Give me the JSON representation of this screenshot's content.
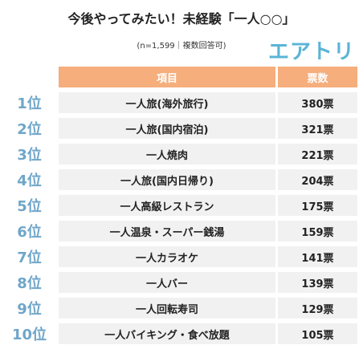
{
  "title": "今後やってみたい！未経験「一人○○」",
  "subtitle": "(n=1,599｜複数回答可)",
  "logo": "エアトリ",
  "header": {
    "item": "項目",
    "votes": "票数"
  },
  "rows": [
    {
      "rank": "1位",
      "item": "一人旅(海外旅行)",
      "votes": "380票"
    },
    {
      "rank": "2位",
      "item": "一人旅(国内宿泊)",
      "votes": "321票"
    },
    {
      "rank": "3位",
      "item": "一人焼肉",
      "votes": "221票"
    },
    {
      "rank": "4位",
      "item": "一人旅(国内日帰り)",
      "votes": "204票"
    },
    {
      "rank": "5位",
      "item": "一人高級レストラン",
      "votes": "175票"
    },
    {
      "rank": "6位",
      "item": "一人温泉・スーパー銭湯",
      "votes": "159票"
    },
    {
      "rank": "7位",
      "item": "一人カラオケ",
      "votes": "141票"
    },
    {
      "rank": "8位",
      "item": "一人バー",
      "votes": "139票"
    },
    {
      "rank": "9位",
      "item": "一人回転寿司",
      "votes": "129票"
    },
    {
      "rank": "10位",
      "item": "一人バイキング・食べ放題",
      "votes": "105票"
    }
  ],
  "colors": {
    "header": "#f5ae7c",
    "cell": "#f1f1f1",
    "rank": "#6fa6c9",
    "logo": "#5ab4d6"
  }
}
